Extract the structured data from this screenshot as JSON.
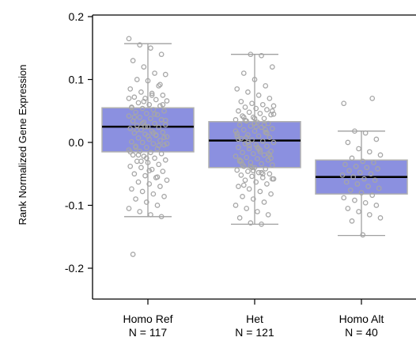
{
  "chart_data": {
    "type": "boxplot",
    "ylabel": "Rank Normalized Gene Expression",
    "ylim": [
      -0.25,
      0.2
    ],
    "yticks": [
      "0.2",
      "0.1",
      "0.0",
      "-0.1",
      "-0.2"
    ],
    "ytick_values": [
      0.2,
      0.1,
      0.0,
      -0.1,
      -0.2
    ],
    "categories": [
      "Homo Ref",
      "Het",
      "Homo Alt"
    ],
    "counts": [
      "N = 117",
      "N = 121",
      "N = 40"
    ],
    "boxes": [
      {
        "whisker_low": -0.118,
        "q1": -0.015,
        "median": 0.025,
        "q3": 0.055,
        "whisker_high": 0.157
      },
      {
        "whisker_low": -0.13,
        "q1": -0.04,
        "median": 0.003,
        "q3": 0.033,
        "whisker_high": 0.14
      },
      {
        "whisker_low": -0.148,
        "q1": -0.082,
        "median": -0.055,
        "q3": -0.028,
        "whisker_high": 0.018
      }
    ],
    "points": [
      [
        0.165,
        0.155,
        0.15,
        0.14,
        0.13,
        0.12,
        0.11,
        0.108,
        0.1,
        0.098,
        0.09,
        0.085,
        0.08,
        0.078,
        0.075,
        0.072,
        0.07,
        0.068,
        0.066,
        0.063,
        0.06,
        0.058,
        0.056,
        0.054,
        0.052,
        0.05,
        0.048,
        0.046,
        0.044,
        0.042,
        0.04,
        0.038,
        0.036,
        0.034,
        0.032,
        0.03,
        0.028,
        0.027,
        0.025,
        0.024,
        0.022,
        0.02,
        0.018,
        0.016,
        0.015,
        0.013,
        0.011,
        0.009,
        0.007,
        0.005,
        0.003,
        0.001,
        0.0,
        -0.002,
        -0.004,
        -0.006,
        -0.008,
        -0.01,
        -0.012,
        -0.014,
        -0.016,
        -0.018,
        -0.02,
        -0.022,
        -0.025,
        -0.028,
        -0.03,
        -0.032,
        -0.035,
        -0.038,
        -0.04,
        -0.043,
        -0.046,
        -0.05,
        -0.053,
        -0.056,
        -0.06,
        -0.063,
        -0.066,
        -0.07,
        -0.074,
        -0.078,
        -0.082,
        -0.086,
        -0.09,
        -0.095,
        -0.1,
        -0.105,
        -0.11,
        -0.115,
        -0.118,
        -0.178,
        0.065,
        0.045,
        0.035,
        0.02,
        0.01,
        -0.005,
        -0.015,
        -0.03,
        0.075,
        0.06,
        0.04,
        0.025,
        0.012,
        -0.002,
        -0.02,
        -0.045,
        0.092,
        0.055,
        0.03,
        0.015,
        0.008,
        -0.008,
        -0.025,
        -0.055,
        0.07
      ],
      [
        0.14,
        0.138,
        0.12,
        0.11,
        0.1,
        0.09,
        0.085,
        0.08,
        0.075,
        0.07,
        0.065,
        0.062,
        0.06,
        0.058,
        0.056,
        0.054,
        0.052,
        0.05,
        0.048,
        0.046,
        0.044,
        0.042,
        0.04,
        0.038,
        0.036,
        0.034,
        0.032,
        0.03,
        0.028,
        0.026,
        0.024,
        0.022,
        0.02,
        0.018,
        0.016,
        0.014,
        0.012,
        0.01,
        0.008,
        0.006,
        0.004,
        0.002,
        0.0,
        -0.002,
        -0.004,
        -0.006,
        -0.008,
        -0.01,
        -0.012,
        -0.014,
        -0.016,
        -0.018,
        -0.02,
        -0.022,
        -0.024,
        -0.026,
        -0.028,
        -0.03,
        -0.032,
        -0.034,
        -0.036,
        -0.038,
        -0.04,
        -0.042,
        -0.044,
        -0.046,
        -0.048,
        -0.05,
        -0.052,
        -0.054,
        -0.056,
        -0.058,
        -0.06,
        -0.063,
        -0.066,
        -0.07,
        -0.074,
        -0.078,
        -0.082,
        -0.086,
        -0.09,
        -0.095,
        -0.1,
        -0.105,
        -0.11,
        -0.115,
        -0.12,
        -0.128,
        -0.13,
        0.05,
        0.04,
        0.03,
        0.02,
        0.01,
        0.0,
        -0.01,
        -0.02,
        -0.03,
        -0.04,
        -0.05,
        0.045,
        0.035,
        0.025,
        0.015,
        0.005,
        -0.005,
        -0.015,
        -0.025,
        -0.035,
        -0.045,
        0.028,
        0.018,
        0.008,
        -0.008,
        -0.018,
        -0.028,
        -0.038,
        -0.048,
        -0.058,
        -0.068,
        0.038
      ],
      [
        0.07,
        0.062,
        0.018,
        0.015,
        0.005,
        0.0,
        -0.01,
        -0.015,
        -0.02,
        -0.025,
        -0.03,
        -0.032,
        -0.035,
        -0.038,
        -0.04,
        -0.042,
        -0.045,
        -0.048,
        -0.05,
        -0.052,
        -0.055,
        -0.058,
        -0.06,
        -0.063,
        -0.066,
        -0.07,
        -0.073,
        -0.076,
        -0.08,
        -0.084,
        -0.088,
        -0.092,
        -0.096,
        -0.1,
        -0.105,
        -0.11,
        -0.115,
        -0.12,
        -0.125,
        -0.147
      ]
    ],
    "grid": false,
    "colors": {
      "box_fill": "#8b90e0",
      "box_stroke": "#b0b0b0",
      "median": "#000000",
      "whisker": "#a0a0a0",
      "point": "#a6a6a6",
      "axis": "#000000"
    }
  }
}
